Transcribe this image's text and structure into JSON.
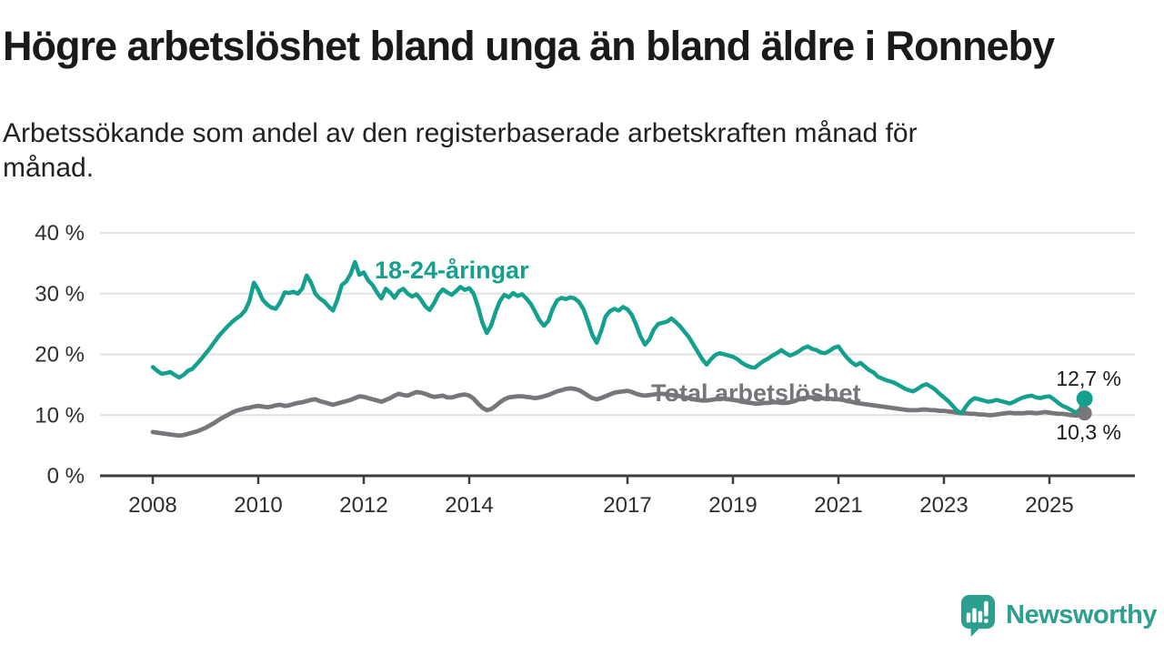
{
  "title": "Högre arbetslöshet bland unga än bland äldre i Ronneby",
  "subtitle": "Arbetssökande som andel av den registerbaserade arbetskraften månad för månad.",
  "branding": {
    "logo_text": "Newsworthy",
    "logo_icon": "newsworthy-speech-bubble-bar-chart-icon",
    "brand_color": "#2d9f90"
  },
  "chart_data": {
    "type": "line",
    "unit": "%",
    "grid": true,
    "legend_position": "inline-labels-on-lines",
    "x_axis": {
      "ticks": [
        2008,
        2010,
        2012,
        2014,
        2017,
        2019,
        2021,
        2023,
        2025
      ],
      "range": [
        2007.0,
        2026.6
      ]
    },
    "y_axis": {
      "tick_labels": [
        "40 %",
        "30 %",
        "20 %",
        "10 %",
        "0 %"
      ],
      "tick_values": [
        40,
        30,
        20,
        10,
        0
      ],
      "range": [
        0,
        41
      ]
    },
    "series": [
      {
        "name": "18-24-åringar",
        "color": "#14a08e",
        "end_label": "12,7 %",
        "last_value": 12.7,
        "start_year": 2008.0,
        "step_years": 0.0833333,
        "values": [
          17.9,
          17.3,
          16.8,
          16.9,
          17.1,
          16.6,
          16.2,
          16.6,
          17.3,
          17.6,
          18.4,
          19.2,
          20.1,
          21.0,
          22.0,
          23.0,
          23.8,
          24.6,
          25.3,
          25.9,
          26.4,
          27.2,
          28.8,
          31.8,
          30.6,
          29.0,
          28.2,
          27.7,
          27.5,
          28.6,
          30.2,
          30.1,
          30.3,
          30.0,
          30.8,
          33.0,
          31.8,
          30.0,
          29.2,
          28.7,
          27.9,
          27.2,
          29.0,
          31.4,
          32.0,
          33.2,
          35.2,
          33.1,
          33.5,
          32.2,
          31.4,
          30.2,
          29.2,
          30.8,
          30.2,
          29.3,
          30.4,
          30.8,
          30.0,
          29.5,
          29.9,
          29.0,
          27.9,
          27.3,
          28.4,
          29.9,
          30.7,
          30.2,
          29.8,
          30.4,
          31.1,
          30.6,
          30.9,
          30.0,
          27.8,
          25.2,
          23.5,
          24.8,
          27.0,
          28.8,
          29.8,
          29.4,
          30.1,
          29.6,
          29.9,
          29.2,
          28.3,
          27.0,
          25.6,
          24.7,
          25.5,
          27.5,
          28.9,
          29.3,
          29.1,
          29.4,
          29.2,
          28.6,
          27.4,
          25.4,
          23.2,
          21.9,
          23.8,
          26.2,
          27.1,
          27.5,
          27.2,
          27.8,
          27.4,
          26.5,
          24.8,
          22.9,
          21.6,
          22.5,
          24.1,
          25.0,
          25.2,
          25.4,
          25.9,
          25.3,
          24.6,
          23.7,
          22.8,
          21.6,
          20.4,
          19.2,
          18.3,
          19.2,
          19.9,
          20.2,
          20.0,
          19.8,
          19.6,
          19.2,
          18.6,
          18.2,
          17.9,
          17.8,
          18.4,
          18.9,
          19.3,
          19.8,
          20.2,
          20.7,
          20.2,
          19.8,
          20.1,
          20.5,
          21.0,
          21.3,
          20.9,
          20.7,
          20.3,
          20.2,
          20.6,
          21.1,
          21.3,
          20.3,
          19.4,
          18.7,
          18.2,
          18.6,
          18.0,
          17.4,
          17.0,
          16.3,
          16.0,
          15.7,
          15.5,
          15.2,
          14.8,
          14.4,
          14.1,
          13.9,
          14.3,
          14.8,
          15.1,
          14.7,
          14.2,
          13.5,
          12.9,
          12.3,
          11.5,
          10.7,
          10.3,
          11.4,
          12.3,
          12.8,
          12.6,
          12.4,
          12.2,
          12.3,
          12.5,
          12.3,
          12.1,
          11.9,
          12.2,
          12.6,
          12.9,
          13.1,
          13.2,
          12.9,
          12.8,
          13.0,
          13.1,
          12.6,
          12.0,
          11.5,
          11.2,
          10.8,
          10.4,
          10.9,
          12.7
        ]
      },
      {
        "name": "Total arbetslöshet",
        "color": "#77777b",
        "end_label": "10,3 %",
        "last_value": 10.3,
        "start_year": 2008.0,
        "step_years": 0.0833333,
        "values": [
          7.2,
          7.1,
          7.0,
          6.9,
          6.8,
          6.7,
          6.6,
          6.7,
          6.9,
          7.1,
          7.3,
          7.6,
          7.9,
          8.3,
          8.7,
          9.2,
          9.6,
          10.0,
          10.4,
          10.7,
          10.9,
          11.1,
          11.2,
          11.4,
          11.5,
          11.4,
          11.3,
          11.4,
          11.6,
          11.7,
          11.5,
          11.6,
          11.8,
          12.0,
          12.1,
          12.3,
          12.5,
          12.6,
          12.3,
          12.1,
          11.9,
          11.7,
          11.9,
          12.1,
          12.3,
          12.5,
          12.8,
          13.1,
          13.0,
          12.8,
          12.6,
          12.4,
          12.2,
          12.5,
          12.8,
          13.2,
          13.5,
          13.3,
          13.2,
          13.5,
          13.8,
          13.7,
          13.5,
          13.2,
          13.0,
          13.1,
          13.2,
          12.9,
          12.9,
          13.1,
          13.3,
          13.4,
          13.2,
          12.7,
          11.9,
          11.2,
          10.8,
          11.0,
          11.5,
          12.1,
          12.6,
          12.9,
          13.0,
          13.1,
          13.1,
          13.0,
          12.9,
          12.8,
          12.9,
          13.1,
          13.3,
          13.6,
          13.9,
          14.1,
          14.3,
          14.4,
          14.3,
          14.1,
          13.7,
          13.2,
          12.8,
          12.6,
          12.8,
          13.1,
          13.4,
          13.7,
          13.8,
          13.9,
          14.0,
          13.8,
          13.5,
          13.3,
          13.2,
          13.3,
          13.4,
          13.5,
          13.5,
          13.4,
          13.3,
          13.2,
          13.1,
          12.9,
          12.8,
          12.6,
          12.5,
          12.4,
          12.4,
          12.5,
          12.6,
          12.7,
          12.7,
          12.6,
          12.5,
          12.4,
          12.2,
          12.1,
          12.0,
          11.9,
          11.9,
          12.0,
          12.0,
          12.1,
          12.1,
          12.0,
          12.0,
          12.1,
          12.3,
          12.6,
          12.8,
          12.9,
          12.9,
          12.8,
          12.8,
          12.7,
          12.7,
          12.6,
          12.6,
          12.5,
          12.3,
          12.2,
          12.0,
          11.9,
          11.8,
          11.7,
          11.6,
          11.5,
          11.4,
          11.3,
          11.2,
          11.1,
          11.0,
          10.9,
          10.8,
          10.8,
          10.8,
          10.9,
          10.9,
          10.8,
          10.8,
          10.7,
          10.7,
          10.6,
          10.5,
          10.4,
          10.3,
          10.3,
          10.2,
          10.2,
          10.1,
          10.1,
          10.0,
          10.0,
          10.1,
          10.2,
          10.3,
          10.4,
          10.3,
          10.3,
          10.3,
          10.4,
          10.4,
          10.3,
          10.4,
          10.5,
          10.4,
          10.3,
          10.2,
          10.2,
          10.1,
          10.0,
          9.9,
          10.0,
          10.3
        ]
      }
    ]
  }
}
